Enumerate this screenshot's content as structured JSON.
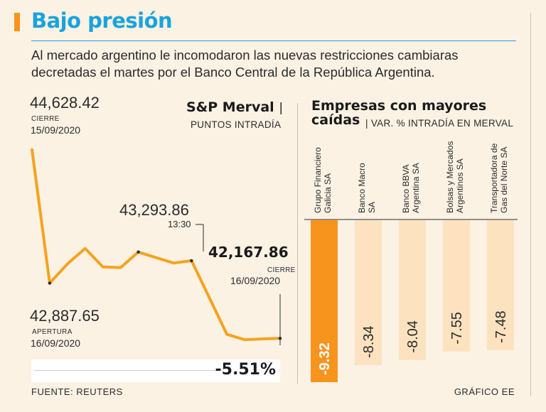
{
  "title": "Bajo presión",
  "subtitle": "Al mercado argentino le incomodaron las nuevas restricciones cambiaras decretadas el martes por el Banco Central de la República Argentina.",
  "colors": {
    "accent": "#f7941d",
    "title": "#1aa3dc",
    "bar_pale": "#fde2bf",
    "background": "#fbf2e4"
  },
  "line_chart": {
    "title": "S&P Merval",
    "separator": "|",
    "subtitle": "PUNTOS INTRADÍA",
    "close_prev_value": "44,628.42",
    "close_prev_label": "CIERRE",
    "close_prev_date": "15/09/2020",
    "open_value": "42,887.65",
    "open_label": "APERTURA",
    "open_date": "16/09/2020",
    "peak_value": "43,293.86",
    "peak_time": "13:30",
    "close_value": "42,167.86",
    "close_label": "CIERRE",
    "close_date": "16/09/2020",
    "change_pct": "-5.51%"
  },
  "bar_chart": {
    "title": "Empresas con mayores caídas",
    "separator": "|",
    "subtitle": "VAR. % INTRADÍA EN MERVAL"
  },
  "chart_data": [
    {
      "type": "line",
      "title": "S&P Merval",
      "ylabel": "Puntos intradía",
      "x": [
        0,
        1,
        2,
        3,
        4,
        5,
        6,
        7,
        8,
        9,
        10,
        11,
        12,
        13,
        14
      ],
      "values": [
        44628.42,
        42887.65,
        43140,
        43340,
        43100,
        43090,
        43293.86,
        43220,
        43150,
        43180,
        42700,
        42220,
        42150,
        42160,
        42167.86
      ],
      "ylim": [
        42050,
        44700
      ],
      "annotations": [
        {
          "label": "CIERRE 15/09/2020",
          "value": 44628.42
        },
        {
          "label": "APERTURA 16/09/2020",
          "value": 42887.65
        },
        {
          "label": "13:30",
          "value": 43293.86
        },
        {
          "label": "CIERRE 16/09/2020",
          "value": 42167.86
        }
      ]
    },
    {
      "type": "bar",
      "title": "Empresas con mayores caídas",
      "ylabel": "Var. % intradía en Merval",
      "categories": [
        [
          "Grupo Financiero",
          "Galicia SA"
        ],
        [
          "Banco Macro",
          "SA"
        ],
        [
          "Banco BBVA",
          "Argentina SA"
        ],
        [
          "Bolsas y Mercados",
          "Argentinos SA"
        ],
        [
          "Transportadora de",
          "Gas del Norte SA"
        ]
      ],
      "values": [
        -9.32,
        -8.34,
        -8.04,
        -7.55,
        -7.48
      ],
      "value_labels": [
        "-9.32",
        "-8.34",
        "-8.04",
        "-7.55",
        "-7.48"
      ]
    }
  ],
  "footer": {
    "source": "FUENTE: REUTERS",
    "credit": "GRÁFICO EE"
  }
}
